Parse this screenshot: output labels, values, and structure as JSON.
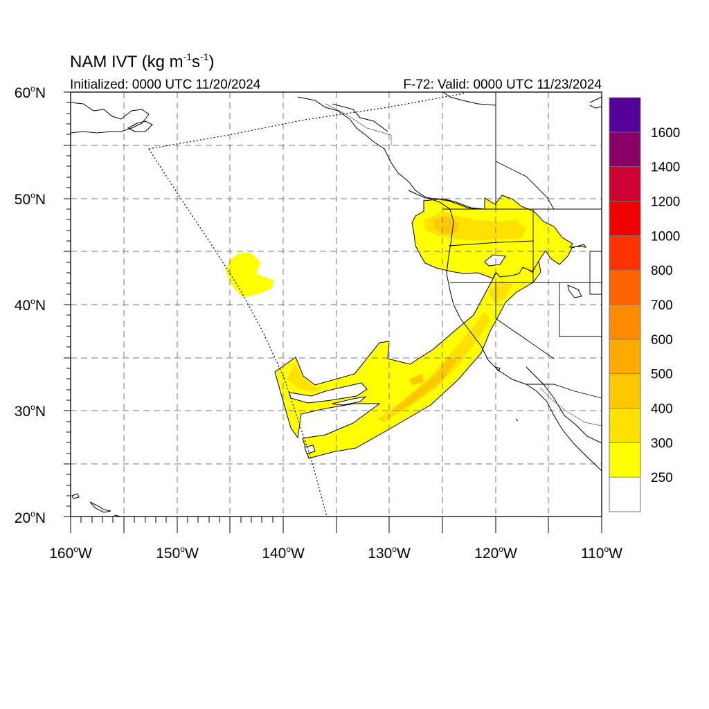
{
  "header": {
    "title": "NAM IVT (kg m",
    "title_sup1": "-1",
    "title_mid": "s",
    "title_sup2": "-1",
    "title_end": ")",
    "initialized": "Initialized: 0000 UTC 11/20/2024",
    "valid": "F-72: Valid: 0000 UTC 11/23/2024"
  },
  "axes": {
    "lat_labels": [
      {
        "num": "60",
        "hemi": "N"
      },
      {
        "num": "50",
        "hemi": "N"
      },
      {
        "num": "40",
        "hemi": "N"
      },
      {
        "num": "30",
        "hemi": "N"
      },
      {
        "num": "20",
        "hemi": "N"
      }
    ],
    "lon_labels": [
      {
        "num": "160",
        "hemi": "W"
      },
      {
        "num": "150",
        "hemi": "W"
      },
      {
        "num": "140",
        "hemi": "W"
      },
      {
        "num": "130",
        "hemi": "W"
      },
      {
        "num": "120",
        "hemi": "W"
      },
      {
        "num": "110",
        "hemi": "W"
      }
    ],
    "lat_range": [
      20,
      60
    ],
    "lon_range": [
      -160,
      -110
    ]
  },
  "colorbar": {
    "labels": [
      "250",
      "300",
      "400",
      "500",
      "600",
      "700",
      "800",
      "1000",
      "1200",
      "1400",
      "1600"
    ],
    "colors": [
      "#ffffff",
      "#ffff00",
      "#ffe100",
      "#ffc800",
      "#ffaa00",
      "#ff8c00",
      "#ff6400",
      "#ff3200",
      "#ee0000",
      "#cc0033",
      "#880066",
      "#550099"
    ]
  },
  "colors": {
    "ivt_250_300": "#ffff00",
    "ivt_300_400": "#ffe100",
    "ivt_400_500": "#ffc800",
    "grid": "#777777",
    "coast": "#000000"
  }
}
